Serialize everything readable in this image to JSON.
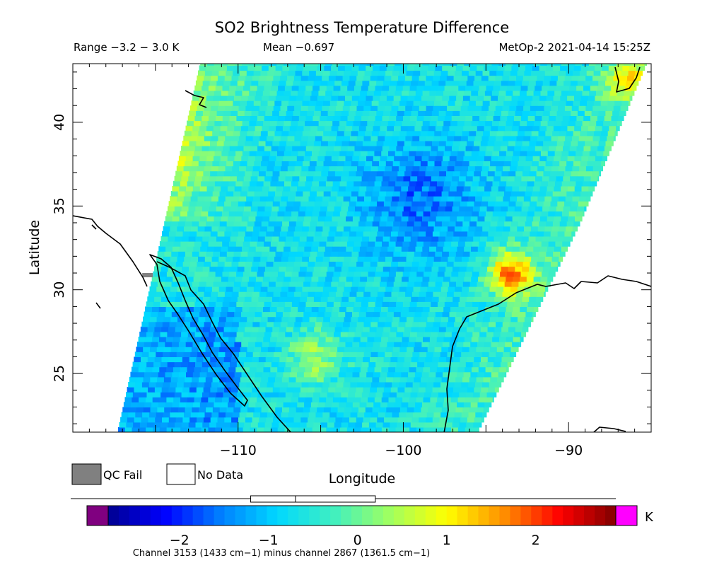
{
  "chart_data": {
    "type": "heatmap",
    "title": "SO2 Brightness Temperature Difference",
    "subtitle_left": "Range −3.2 − 3.0 K",
    "subtitle_center": "Mean −0.697",
    "subtitle_right": "MetOp-2 2021-04-14 15:25Z",
    "xlabel": "Longitude",
    "ylabel": "Latitude",
    "xlim": [
      -120,
      -85
    ],
    "ylim": [
      21.5,
      43.5
    ],
    "x_ticks": [
      -110,
      -100,
      -90
    ],
    "y_ticks": [
      25,
      30,
      35,
      40
    ],
    "x_tick_labels": [
      "−110",
      "−100",
      "−90"
    ],
    "y_tick_labels": [
      "25",
      "30",
      "35",
      "40"
    ],
    "legend": [
      {
        "label": "QC Fail",
        "color": "#808080"
      },
      {
        "label": "No Data",
        "color": "#ffffff"
      }
    ],
    "colorbar": {
      "min": -2.8,
      "max": 2.9,
      "ticks": [
        -2,
        -1,
        0,
        1,
        2
      ],
      "tick_labels": [
        "−2",
        "−1",
        "0",
        "1",
        "2"
      ],
      "unit": "K",
      "under_color": "#800080",
      "over_color": "#ff00ff",
      "stops": [
        "#00008f",
        "#0000ff",
        "#0080ff",
        "#00d8ff",
        "#40f0c0",
        "#a0ff60",
        "#ffff00",
        "#ff9000",
        "#ff0000",
        "#800000"
      ],
      "caption": "Channel 3153 (1433 cm−1) minus channel 2867 (1361.5 cm−1)"
    },
    "range_box": [
      -1.2,
      0.2
    ],
    "mean_marker": -0.697,
    "swath": {
      "left_edge": [
        [
          -117.3,
          21.5
        ],
        [
          -112.3,
          43.5
        ]
      ],
      "right_edge": [
        [
          -95.5,
          21.5
        ],
        [
          -89.3,
          34
        ],
        [
          -85.3,
          43.5
        ]
      ]
    },
    "features": [
      {
        "lon": -105.3,
        "lat": 26.0,
        "radius": 1.6,
        "value": 0.3
      },
      {
        "lon": -116.5,
        "lat": 39.0,
        "radius": 3.0,
        "value": 0.8
      },
      {
        "lon": -93.5,
        "lat": 31.0,
        "radius": 1.3,
        "value": 1.6
      },
      {
        "lon": -99.0,
        "lat": 35.5,
        "radius": 3.5,
        "value": -1.6
      },
      {
        "lon": -86.5,
        "lat": 42.5,
        "radius": 1.2,
        "value": 0.9
      }
    ]
  }
}
